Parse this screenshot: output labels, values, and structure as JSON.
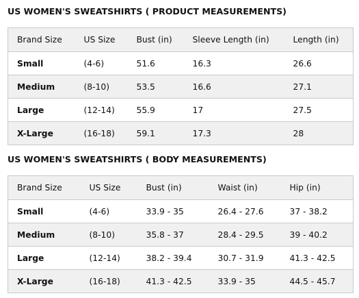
{
  "product_section": {
    "title": "US WOMEN'S SWEATSHIRTS ( PRODUCT MEASUREMENTS)",
    "headers": [
      "Brand Size",
      "US Size",
      "Bust (in)",
      "Sleeve Length (in)",
      "Length (in)"
    ],
    "rows": [
      [
        "Small",
        "(4-6)",
        "51.6",
        "16.3",
        "26.6"
      ],
      [
        "Medium",
        "(8-10)",
        "53.5",
        "16.6",
        "27.1"
      ],
      [
        "Large",
        "(12-14)",
        "55.9",
        "17",
        "27.5"
      ],
      [
        "X-Large",
        "(16-18)",
        "59.1",
        "17.3",
        "28"
      ]
    ]
  },
  "body_section": {
    "title": "US WOMEN'S SWEATSHIRTS ( BODY MEASUREMENTS)",
    "headers": [
      "Brand Size",
      "US Size",
      "Bust (in)",
      "Waist (in)",
      "Hip (in)"
    ],
    "rows": [
      [
        "Small",
        "(4-6)",
        "33.9 - 35",
        "26.4 - 27.6",
        "37 - 38.2"
      ],
      [
        "Medium",
        "(8-10)",
        "35.8 - 37",
        "28.4 - 29.5",
        "39 - 40.2"
      ],
      [
        "Large",
        "(12-14)",
        "38.2 - 39.4",
        "30.7 - 31.9",
        "41.3 - 42.5"
      ],
      [
        "X-Large",
        "(16-18)",
        "41.3 - 42.5",
        "33.9 - 35",
        "44.5 - 45.7"
      ]
    ]
  }
}
